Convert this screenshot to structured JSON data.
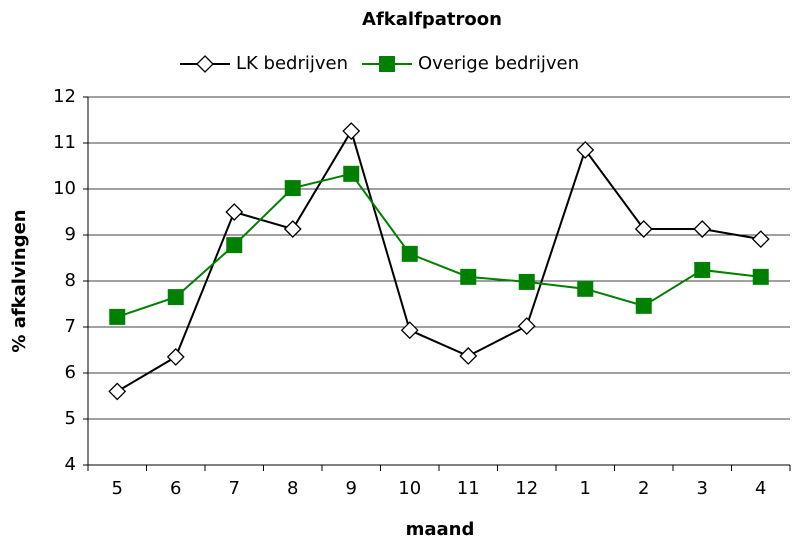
{
  "chart_data": {
    "type": "line",
    "title": "Afkalfpatroon",
    "x_label": "maand",
    "y_label": "% afkalvingen",
    "categories": [
      "5",
      "6",
      "7",
      "8",
      "9",
      "10",
      "11",
      "12",
      "1",
      "2",
      "3",
      "4"
    ],
    "series": [
      {
        "name": "LK bedrijven",
        "color": "#000000",
        "marker": "diamond",
        "values": [
          5.6,
          6.35,
          9.5,
          9.13,
          11.26,
          6.93,
          6.37,
          7.02,
          10.85,
          9.13,
          9.13,
          8.91
        ]
      },
      {
        "name": "Overige bedrijven",
        "color": "#008000",
        "marker": "square",
        "values": [
          7.22,
          7.65,
          8.78,
          10.02,
          10.33,
          8.59,
          8.09,
          7.98,
          7.83,
          7.46,
          8.24,
          8.09
        ]
      }
    ],
    "ylim": [
      4,
      12
    ],
    "yticks": [
      4,
      5,
      6,
      7,
      8,
      9,
      10,
      11,
      12
    ],
    "grid": true,
    "legend": "top"
  }
}
